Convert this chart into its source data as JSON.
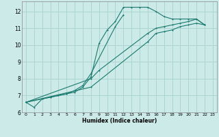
{
  "xlabel": "Humidex (Indice chaleur)",
  "background_color": "#cceae8",
  "grid_color": "#aad4d2",
  "line_color": "#1a7a6e",
  "xlim": [
    -0.5,
    23.5
  ],
  "ylim": [
    6,
    12.6
  ],
  "xticks": [
    0,
    1,
    2,
    3,
    4,
    5,
    6,
    7,
    8,
    9,
    10,
    11,
    12,
    13,
    14,
    15,
    16,
    17,
    18,
    19,
    20,
    21,
    22,
    23
  ],
  "yticks": [
    6,
    7,
    8,
    9,
    10,
    11,
    12
  ],
  "series_x": [
    [
      0,
      1,
      2,
      3,
      4,
      5,
      6,
      7,
      8,
      9,
      10,
      11,
      12,
      13,
      14,
      15,
      16,
      17,
      18,
      19,
      20,
      21,
      22
    ],
    [
      0,
      2,
      3,
      4,
      5,
      6,
      7,
      8,
      11,
      12
    ],
    [
      0,
      8,
      9,
      15,
      16,
      17,
      18,
      19,
      20,
      21,
      22
    ],
    [
      0,
      8,
      15,
      16,
      17,
      18,
      19,
      20,
      21,
      22
    ]
  ],
  "series_y": [
    [
      6.6,
      6.3,
      6.8,
      6.9,
      7.0,
      7.1,
      7.2,
      7.5,
      8.1,
      10.1,
      10.9,
      11.4,
      12.25,
      12.25,
      12.25,
      12.25,
      12.0,
      11.7,
      11.55,
      11.55,
      11.55,
      11.55,
      11.2
    ],
    [
      6.6,
      6.8,
      6.9,
      7.0,
      7.1,
      7.3,
      7.6,
      8.3,
      11.1,
      11.8
    ],
    [
      6.6,
      8.0,
      8.5,
      10.7,
      11.0,
      11.1,
      11.2,
      11.3,
      11.4,
      11.55,
      11.2
    ],
    [
      6.6,
      7.5,
      10.2,
      10.7,
      10.8,
      10.9,
      11.1,
      11.2,
      11.3,
      11.2
    ]
  ]
}
